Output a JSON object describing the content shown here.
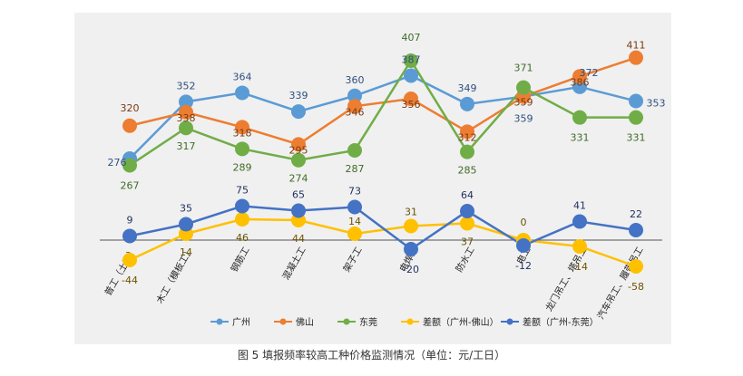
{
  "caption": "图 5   填报频率较高工种价格监测情况（单位：元/工日）",
  "chart_data": {
    "type": "line",
    "categories": [
      "普工（土建）",
      "木工（模板工）",
      "钢筋工",
      "混凝土工",
      "架子工",
      "电焊工",
      "防水工",
      "电工",
      "龙门吊工、塔吊工",
      "汽车吊工、履带吊工"
    ],
    "series": [
      {
        "name": "广州",
        "color": "#5b9bd5",
        "values": [
          276,
          352,
          364,
          339,
          360,
          387,
          349,
          359,
          372,
          353
        ]
      },
      {
        "name": "佛山",
        "color": "#ed7d31",
        "values": [
          320,
          338,
          318,
          295,
          346,
          356,
          312,
          359,
          386,
          411
        ]
      },
      {
        "name": "东莞",
        "color": "#70ad47",
        "values": [
          267,
          317,
          289,
          274,
          287,
          407,
          285,
          371,
          331,
          331
        ]
      },
      {
        "name": "差额（广州-佛山）",
        "color": "#ffc000",
        "values": [
          -44,
          14,
          46,
          44,
          14,
          31,
          37,
          0,
          -14,
          -58
        ]
      },
      {
        "name": "差额（广州-东莞）",
        "color": "#4472c4",
        "values": [
          9,
          35,
          75,
          65,
          73,
          -20,
          64,
          -12,
          41,
          22
        ]
      }
    ],
    "grid": false,
    "legend": "bottom"
  }
}
